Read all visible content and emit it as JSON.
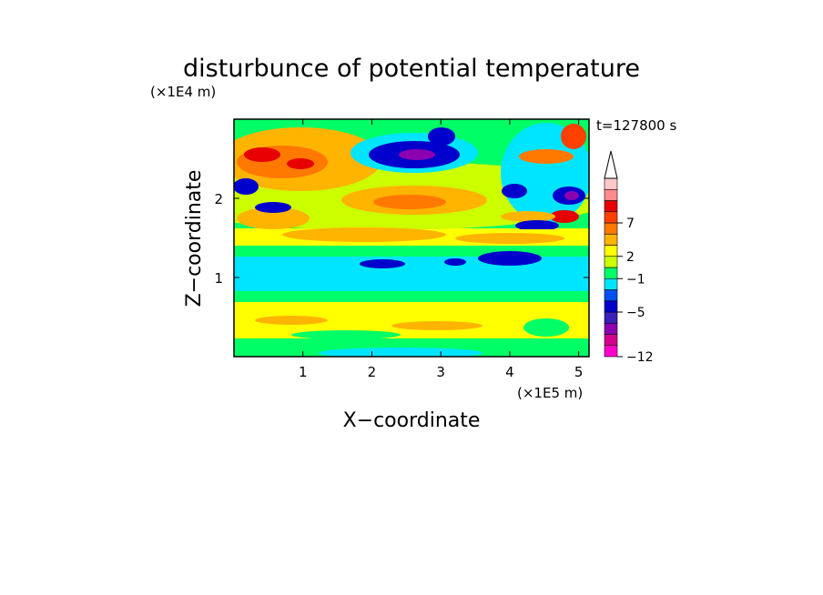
{
  "chart_data": {
    "type": "heatmap",
    "title": "disturbunce of potential temperature",
    "xlabel": "X−coordinate",
    "ylabel": "Z−coordinate",
    "x_unit": "(×1E5 m)",
    "y_unit": "(×1E4 m)",
    "time_label": "t=127800 s",
    "xlim": [
      0,
      5.15
    ],
    "ylim": [
      0,
      3.0
    ],
    "x_ticks": [
      1,
      2,
      3,
      4,
      5
    ],
    "y_ticks": [
      1,
      2
    ],
    "colorbar": {
      "levels": [
        -12,
        -5,
        -1,
        2,
        7
      ],
      "labels": [
        "−12",
        "−5",
        "−1",
        "2",
        "7"
      ],
      "colors": [
        "#ff00cc",
        "#d4008e",
        "#8b00b0",
        "#3a1fb8",
        "#0000cc",
        "#0050f0",
        "#00e5ff",
        "#00ff66",
        "#ccff00",
        "#ffff00",
        "#ffb400",
        "#ff7800",
        "#ff4000",
        "#e80000",
        "#ff8c8c",
        "#ffc8c8"
      ],
      "extend": "max"
    },
    "features": [
      {
        "region": "surface layer (z 0-0.3)",
        "value_range": [
          -1,
          2
        ],
        "colors": [
          "green",
          "yellow"
        ]
      },
      {
        "region": "z 0.3-0.8",
        "value_range": [
          0,
          2
        ],
        "colors": [
          "yellow",
          "light green"
        ]
      },
      {
        "region": "z 0.8-1.3",
        "value_range": [
          -2,
          -1
        ],
        "colors": [
          "cyan"
        ]
      },
      {
        "region": "cold patches near z 1.25",
        "value_range": [
          -5,
          -3
        ],
        "colors": [
          "blue"
        ]
      },
      {
        "region": "z 1.3-1.9",
        "value_range": [
          0,
          4
        ],
        "colors": [
          "yellow",
          "orange"
        ]
      },
      {
        "region": "warm band z 2.2-2.7, x 0-1.5",
        "value_range": [
          3,
          7
        ],
        "colors": [
          "orange",
          "red"
        ]
      },
      {
        "region": "cold core x 2.2-3.2, z 2.3-2.8",
        "value_range": [
          -8,
          -5
        ],
        "colors": [
          "blue",
          "purple"
        ]
      },
      {
        "region": "wave train x 4.0-5.1, z 1.8-2.9",
        "value_range": [
          -8,
          7
        ],
        "colors": [
          "red",
          "blue",
          "purple"
        ]
      }
    ]
  }
}
